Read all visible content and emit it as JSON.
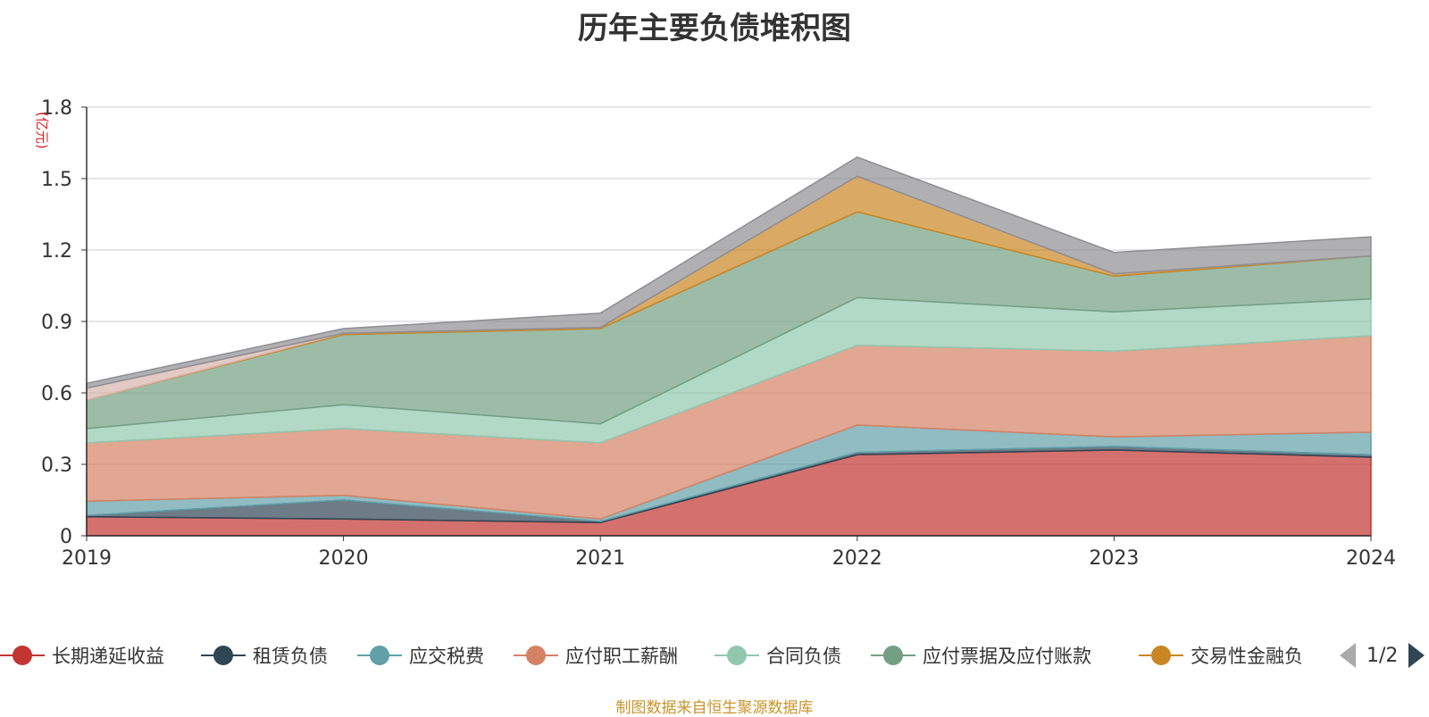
{
  "title": "历年主要负债堆积图",
  "unit_label": "(亿元)",
  "source_note": "制图数据来自恒生聚源数据库",
  "pager": {
    "text": "1/2"
  },
  "legend": [
    {
      "name": "长期递延收益",
      "color": "#c23531"
    },
    {
      "name": "租赁负债",
      "color": "#2f4554"
    },
    {
      "name": "应交税费",
      "color": "#61a0a8"
    },
    {
      "name": "应付职工薪酬",
      "color": "#d48265"
    },
    {
      "name": "合同负债",
      "color": "#91c7ae"
    },
    {
      "name": "应付票据及应付账款",
      "color": "#749f83"
    },
    {
      "name": "交易性金融负",
      "color": "#ca8622"
    }
  ],
  "chart_data": {
    "type": "area",
    "stacked": true,
    "title": "历年主要负债堆积图",
    "ylabel": "(亿元)",
    "x": [
      "2019",
      "2020",
      "2021",
      "2022",
      "2023",
      "2024"
    ],
    "ylim": [
      0,
      1.8
    ],
    "yticks": [
      "0",
      "0.3",
      "0.6",
      "0.9",
      "1.2",
      "1.5",
      "1.8"
    ],
    "grid": true,
    "legend_position": "bottom",
    "series": [
      {
        "name": "长期递延收益",
        "color": "#c23531",
        "values": [
          0.08,
          0.07,
          0.055,
          0.34,
          0.36,
          0.33
        ]
      },
      {
        "name": "租赁负债",
        "color": "#2f4554",
        "values": [
          0.005,
          0.08,
          0.005,
          0.01,
          0.015,
          0.01
        ]
      },
      {
        "name": "应交税费",
        "color": "#61a0a8",
        "values": [
          0.06,
          0.02,
          0.01,
          0.115,
          0.04,
          0.095
        ]
      },
      {
        "name": "应付职工薪酬",
        "color": "#d48265",
        "values": [
          0.245,
          0.28,
          0.32,
          0.335,
          0.36,
          0.405
        ]
      },
      {
        "name": "合同负债",
        "color": "#91c7ae",
        "values": [
          0.06,
          0.1,
          0.08,
          0.2,
          0.165,
          0.155
        ]
      },
      {
        "name": "应付票据及应付账款",
        "color": "#749f83",
        "values": [
          0.12,
          0.295,
          0.4,
          0.36,
          0.15,
          0.18
        ]
      },
      {
        "name": "交易性金融负",
        "color": "#ca8622",
        "values": [
          0,
          0.005,
          0.005,
          0.15,
          0.01,
          0
        ]
      },
      {
        "color": "#d8b4ad",
        "values": [
          0.05,
          0,
          0,
          0,
          0,
          0
        ]
      },
      {
        "color": "#8e8e93",
        "values": [
          0.02,
          0.02,
          0.06,
          0.08,
          0.09,
          0.08
        ]
      }
    ]
  }
}
